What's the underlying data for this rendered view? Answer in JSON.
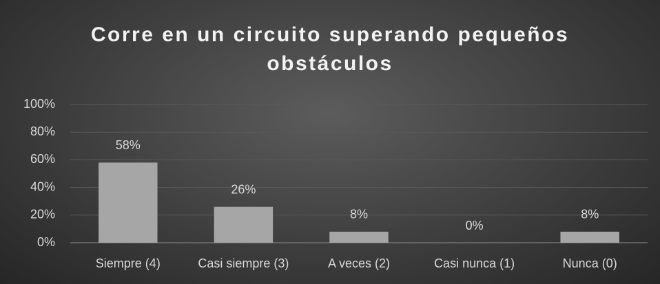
{
  "chart_data": {
    "type": "bar",
    "title": "Corre en un circuito superando pequeños obstáculos",
    "categories": [
      "Siempre (4)",
      "Casi siempre (3)",
      "A veces (2)",
      "Casi nunca (1)",
      "Nunca (0)"
    ],
    "values": [
      58,
      26,
      8,
      0,
      8
    ],
    "value_labels": [
      "58%",
      "26%",
      "8%",
      "0%",
      "8%"
    ],
    "color": "#a6a6a6",
    "ylim": [
      0,
      100
    ],
    "yticks": [
      {
        "value": 0,
        "label": "0%"
      },
      {
        "value": 20,
        "label": "20%"
      },
      {
        "value": 40,
        "label": "40%"
      },
      {
        "value": 60,
        "label": "60%"
      },
      {
        "value": 80,
        "label": "80%"
      },
      {
        "value": 100,
        "label": "100%"
      }
    ],
    "grid": true
  }
}
